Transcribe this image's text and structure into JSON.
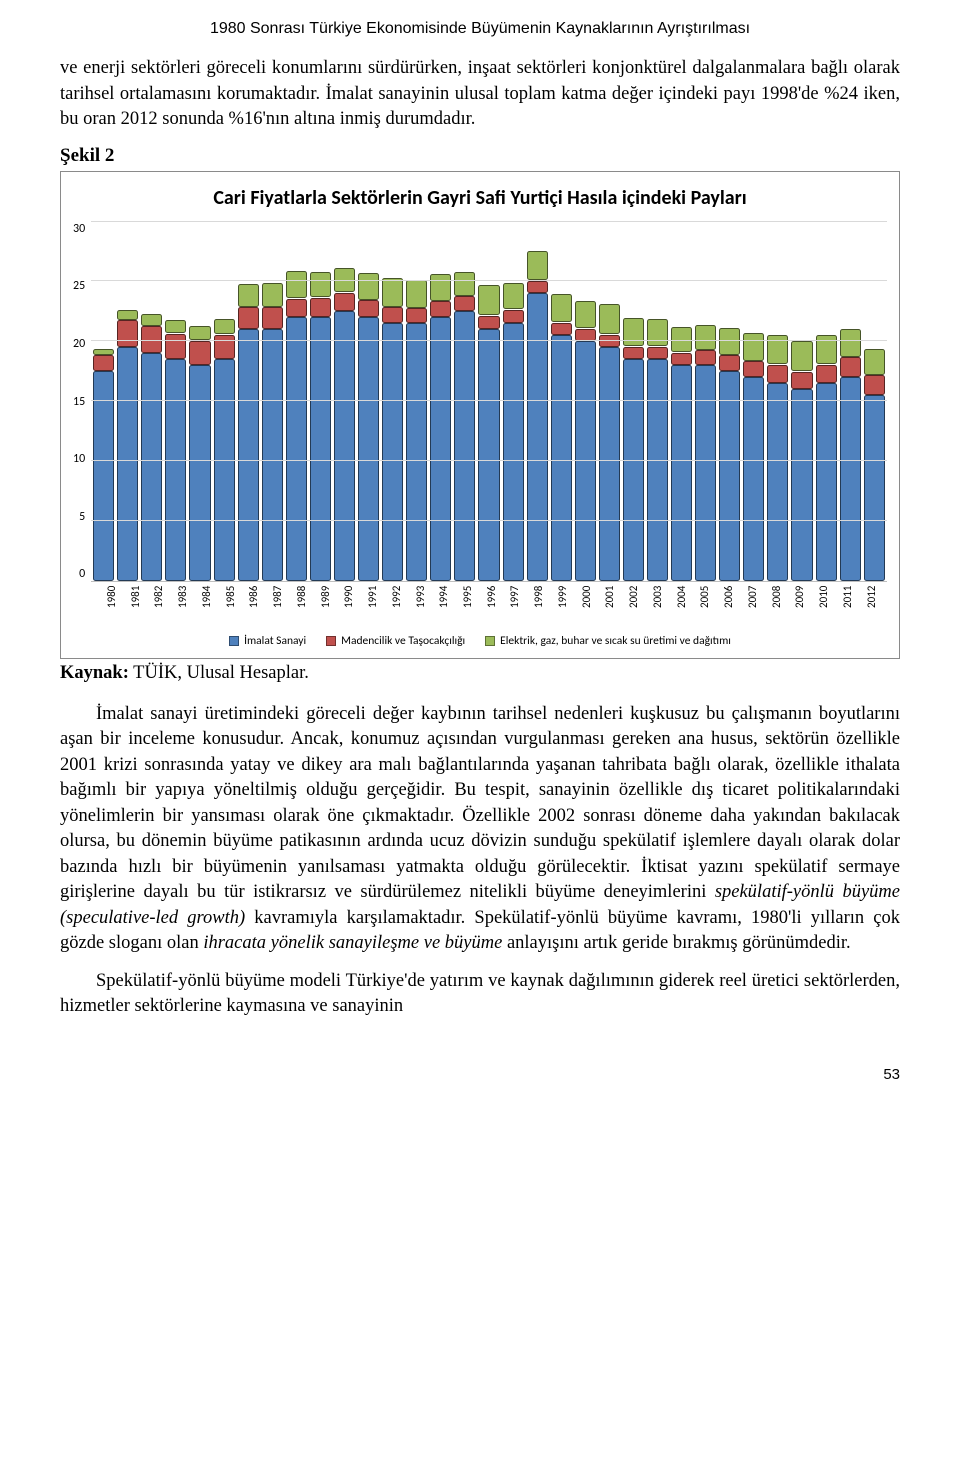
{
  "header": "1980 Sonrası Türkiye Ekonomisinde Büyümenin Kaynaklarının Ayrıştırılması",
  "para1": "ve enerji sektörleri göreceli konumlarını sürdürürken, inşaat sektörleri konjonktürel dalgalanmalara bağlı olarak tarihsel ortalamasını korumaktadır. İmalat sanayinin ulusal toplam katma değer içindeki payı 1998'de %24 iken, bu oran 2012 sonunda %16'nın altına inmiş durumdadır.",
  "figure_label": "Şekil 2",
  "chart": {
    "title": "Cari Fiyatlarla Sektörlerin Gayri Safi Yurtiçi Hasıla içindeki Payları",
    "y_ticks": [
      "30",
      "25",
      "20",
      "15",
      "10",
      "5",
      "0"
    ],
    "y_max": 30,
    "years": [
      "1980",
      "1981",
      "1982",
      "1983",
      "1984",
      "1985",
      "1986",
      "1987",
      "1988",
      "1989",
      "1990",
      "1991",
      "1992",
      "1993",
      "1994",
      "1995",
      "1996",
      "1997",
      "1998",
      "1999",
      "2000",
      "2001",
      "2002",
      "2003",
      "2004",
      "2005",
      "2006",
      "2007",
      "2008",
      "2009",
      "2010",
      "2011",
      "2012"
    ],
    "series": {
      "imalat": [
        17.5,
        19.5,
        19.0,
        18.5,
        18.0,
        18.5,
        21.0,
        21.0,
        22.0,
        22.0,
        22.5,
        22.0,
        21.5,
        21.5,
        22.0,
        22.5,
        21.0,
        21.5,
        24.0,
        20.5,
        20.0,
        19.5,
        18.5,
        18.5,
        18.0,
        18.0,
        17.5,
        17.0,
        16.5,
        16.0,
        16.5,
        17.0,
        15.5
      ],
      "madencilik": [
        1.3,
        2.2,
        2.2,
        2.1,
        2.0,
        2.0,
        1.8,
        1.8,
        1.5,
        1.6,
        1.5,
        1.4,
        1.3,
        1.2,
        1.3,
        1.2,
        1.1,
        1.1,
        1.0,
        1.0,
        1.0,
        1.0,
        1.0,
        1.0,
        1.0,
        1.2,
        1.3,
        1.3,
        1.5,
        1.4,
        1.5,
        1.6,
        1.6
      ],
      "elektrik": [
        0.5,
        0.8,
        1.0,
        1.1,
        1.2,
        1.3,
        1.9,
        2.0,
        2.3,
        2.1,
        2.0,
        2.2,
        2.4,
        2.3,
        2.2,
        2.0,
        2.5,
        2.2,
        2.5,
        2.4,
        2.3,
        2.5,
        2.4,
        2.3,
        2.1,
        2.1,
        2.2,
        2.3,
        2.4,
        2.5,
        2.4,
        2.3,
        2.2
      ]
    },
    "colors": {
      "imalat": "#4f81bd",
      "madencilik": "#c0504d",
      "elektrik": "#9bbb59",
      "grid": "#d9d9d9",
      "axis_font": "#000000"
    },
    "legend": [
      {
        "label": "İmalat Sanayi",
        "key": "imalat"
      },
      {
        "label": "Madencilik ve Taşocakçılığı",
        "key": "madencilik"
      },
      {
        "label": "Elektrik, gaz, buhar ve sıcak su üretimi ve dağıtımı",
        "key": "elektrik"
      }
    ]
  },
  "source_bold": "Kaynak:",
  "source_rest": " TÜİK, Ulusal Hesaplar.",
  "para2_a": "İmalat sanayi üretimindeki göreceli değer kaybının tarihsel nedenleri kuşkusuz bu çalışmanın boyutlarını aşan bir inceleme konusudur. Ancak, konumuz açısından vurgulanması gereken ana husus, sektörün özellikle 2001 krizi sonrasında yatay ve dikey ara malı bağlantılarında yaşanan tahribata bağlı olarak, özellikle ithalata bağımlı bir yapıya yöneltilmiş olduğu gerçeğidir. Bu tespit, sanayinin özellikle dış ticaret politikalarındaki yönelimlerin bir yansıması olarak öne çıkmaktadır. Özellikle 2002 sonrası döneme daha yakından bakılacak olursa, bu dönemin büyüme patikasının ardında ucuz dövizin sunduğu spekülatif işlemlere dayalı olarak dolar bazında hızlı bir büyümenin yanılsaması yatmakta olduğu görülecektir. İktisat yazını spekülatif sermaye girişlerine dayalı bu tür istikrarsız ve sürdürülemez nitelikli büyüme deneyimlerini ",
  "para2_it1": "spekülatif-yönlü büyüme (speculative-led growth)",
  "para2_b": " kavramıyla karşılamaktadır. Spekülatif-yönlü büyüme kavramı, 1980'li yılların çok gözde sloganı olan ",
  "para2_it2": "ihracata yönelik sanayileşme ve büyüme",
  "para2_c": " anlayışını artık geride bırakmış görünümdedir.",
  "para3": "Spekülatif-yönlü büyüme modeli Türkiye'de yatırım ve kaynak dağılımının giderek reel üretici sektörlerden, hizmetler sektörlerine kaymasına ve sanayinin",
  "page_number": "53"
}
